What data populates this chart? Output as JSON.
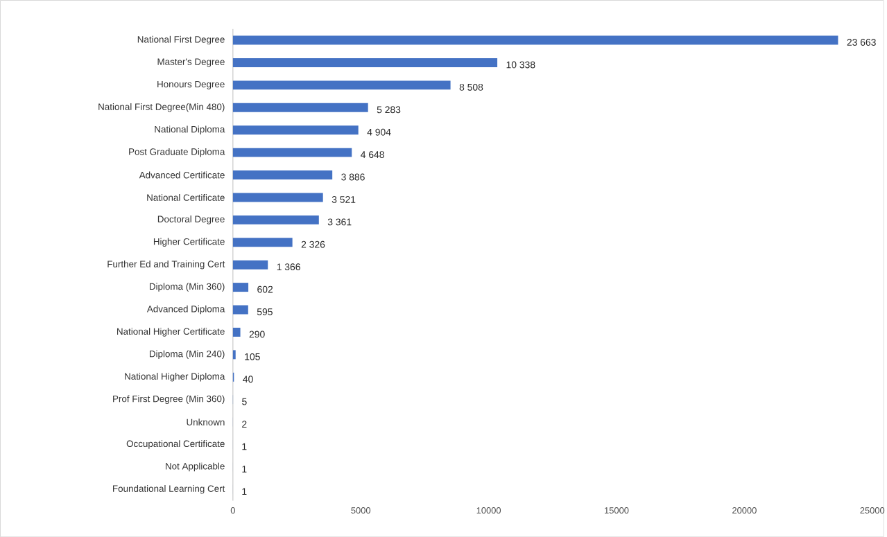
{
  "chart_data": {
    "type": "bar",
    "orientation": "horizontal",
    "color": "#4472c4",
    "categories": [
      "National First Degree",
      "Master's Degree",
      "Honours Degree",
      "National First Degree(Min 480)",
      "National Diploma",
      "Post Graduate Diploma",
      "Advanced Certificate",
      "National Certificate",
      "Doctoral Degree",
      "Higher Certificate",
      "Further Ed and Training Cert",
      "Diploma (Min 360)",
      "Advanced Diploma",
      "National Higher Certificate",
      "Diploma (Min 240)",
      "National Higher Diploma",
      "Prof First Degree (Min 360)",
      "Unknown",
      "Occupational Certificate",
      "Not Applicable",
      "Foundational Learning Cert"
    ],
    "values": [
      23663,
      10338,
      8508,
      5283,
      4904,
      4648,
      3886,
      3521,
      3361,
      2326,
      1366,
      602,
      595,
      290,
      105,
      40,
      5,
      2,
      1,
      1,
      1
    ],
    "value_labels": [
      "23 663",
      "10 338",
      "8 508",
      "5 283",
      "4 904",
      "4 648",
      "3 886",
      "3 521",
      "3 361",
      "2 326",
      "1 366",
      "602",
      "595",
      "290",
      "105",
      "40",
      "5",
      "2",
      "1",
      "1",
      "1"
    ],
    "xlim": [
      0,
      25000
    ],
    "xticks": [
      0,
      5000,
      10000,
      15000,
      20000,
      25000
    ]
  }
}
